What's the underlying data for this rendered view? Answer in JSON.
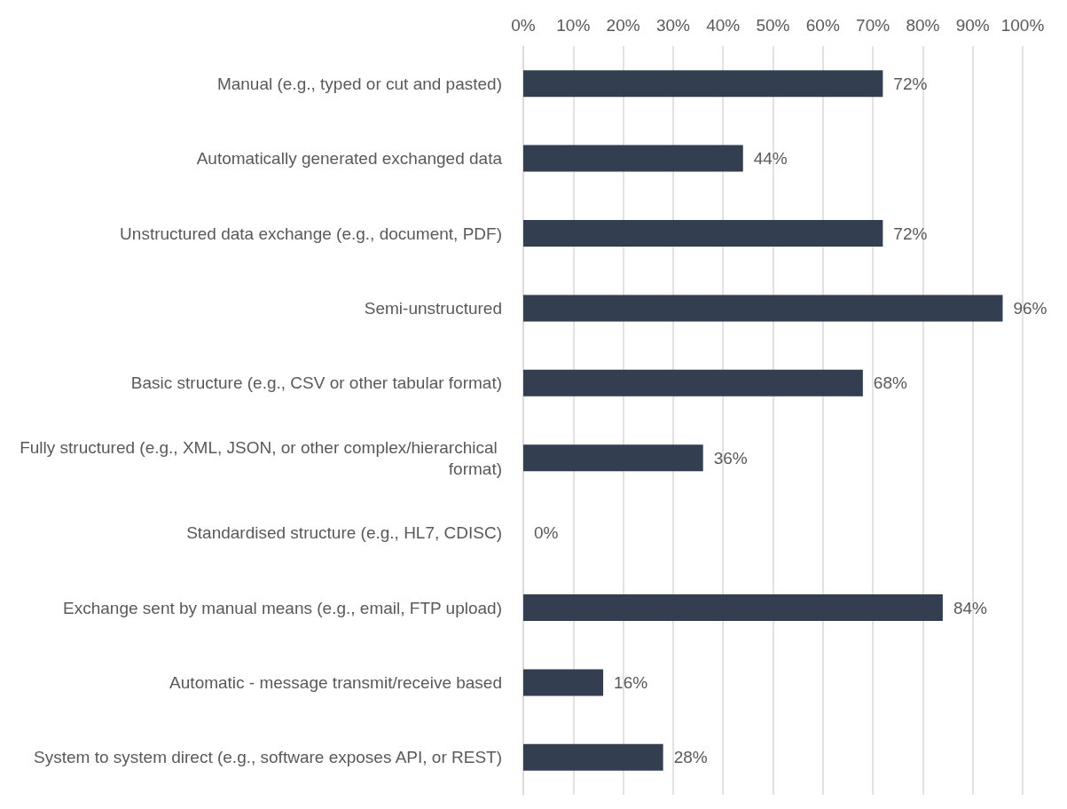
{
  "chart_data": {
    "type": "bar",
    "orientation": "horizontal",
    "categories": [
      "Manual (e.g., typed or cut and pasted)",
      "Automatically generated exchanged data",
      "Unstructured data exchange (e.g., document, PDF)",
      "Semi-unstructured",
      "Basic structure (e.g., CSV or other tabular format)",
      "Fully structured (e.g., XML, JSON, or other complex/hierarchical format)",
      "Standardised structure (e.g., HL7, CDISC)",
      "Exchange sent by manual means (e.g., email, FTP upload)",
      "Automatic - message transmit/receive based",
      "System to system direct (e.g., software exposes API, or REST)"
    ],
    "values": [
      72,
      44,
      72,
      96,
      68,
      36,
      0,
      84,
      16,
      28
    ],
    "value_labels": [
      "72%",
      "44%",
      "72%",
      "96%",
      "68%",
      "36%",
      "0%",
      "84%",
      "16%",
      "28%"
    ],
    "color": "#333f50",
    "xlim": [
      0,
      100
    ],
    "xticks": [
      {
        "value": 0,
        "label": "0%"
      },
      {
        "value": 10,
        "label": "10%"
      },
      {
        "value": 20,
        "label": "20%"
      },
      {
        "value": 30,
        "label": "30%"
      },
      {
        "value": 40,
        "label": "40%"
      },
      {
        "value": 50,
        "label": "50%"
      },
      {
        "value": 60,
        "label": "60%"
      },
      {
        "value": 70,
        "label": "70%"
      },
      {
        "value": 80,
        "label": "80%"
      },
      {
        "value": 90,
        "label": "90%"
      },
      {
        "value": 100,
        "label": "100%"
      }
    ],
    "grid": "x"
  }
}
